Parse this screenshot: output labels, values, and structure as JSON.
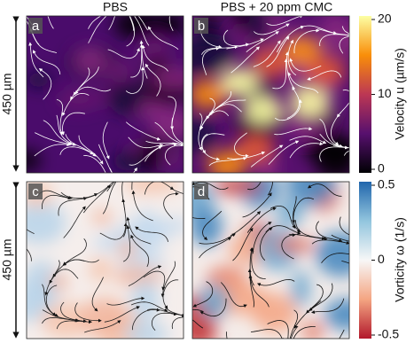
{
  "columns": [
    "PBS",
    "PBS + 20 ppm CMC"
  ],
  "rows": [
    "450 µm",
    "450 µm"
  ],
  "panels": [
    {
      "label": "a"
    },
    {
      "label": "b"
    },
    {
      "label": "c"
    },
    {
      "label": "d"
    }
  ],
  "colorbars": [
    {
      "label": "Velocity u (µm/s)",
      "ticks": [
        20,
        10,
        0
      ]
    },
    {
      "label": "Vorticity ω (1/s)",
      "ticks": [
        0.5,
        0,
        -0.5
      ]
    }
  ]
}
